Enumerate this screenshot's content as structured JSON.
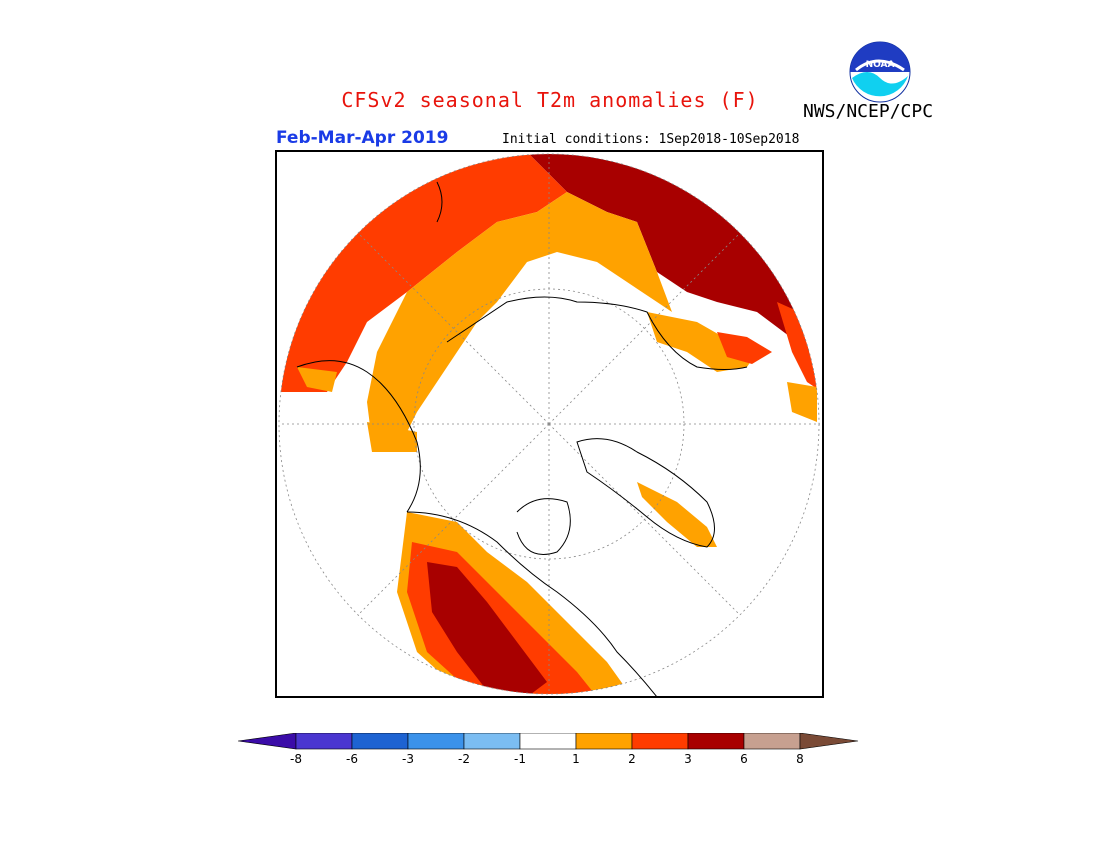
{
  "header": {
    "title": "CFSv2 seasonal T2m anomalies (F)",
    "agency": "NWS/NCEP/CPC",
    "period": "Feb-Mar-Apr 2019",
    "initial_conditions": "Initial conditions: 1Sep2018-10Sep2018",
    "logo_text": "NOAA"
  },
  "colors": {
    "title": "#e8140c",
    "period": "#1a3be6",
    "land_outline": "#000000"
  },
  "legend": {
    "bins": [
      {
        "color": "#3b0ca8"
      },
      {
        "color": "#4a36d0"
      },
      {
        "color": "#1e63d2"
      },
      {
        "color": "#3b92ea"
      },
      {
        "color": "#7bbdf2"
      },
      {
        "color": "#ffffff"
      },
      {
        "color": "#ffa200"
      },
      {
        "color": "#ff3c00"
      },
      {
        "color": "#a80000"
      },
      {
        "color": "#c7a090"
      },
      {
        "color": "#7a4a36"
      }
    ],
    "ticks": [
      "-8",
      "-6",
      "-3",
      "-2",
      "-1",
      "1",
      "2",
      "3",
      "6",
      "8"
    ]
  }
}
